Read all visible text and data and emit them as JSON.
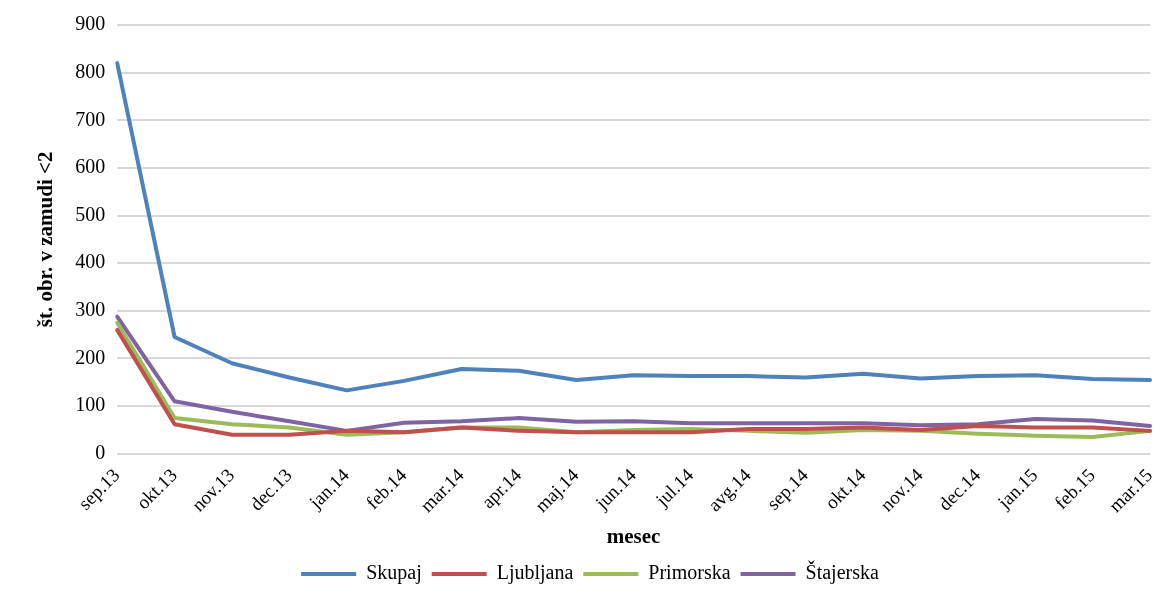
{
  "chart_data": {
    "type": "line",
    "xlabel": "mesec",
    "ylabel": "št. obr. v zamudi <2",
    "categories": [
      "sep.13",
      "okt.13",
      "nov.13",
      "dec.13",
      "jan.14",
      "feb.14",
      "mar.14",
      "apr.14",
      "maj.14",
      "jun.14",
      "jul.14",
      "avg.14",
      "sep.14",
      "okt.14",
      "nov.14",
      "dec.14",
      "jan.15",
      "feb.15",
      "mar.15"
    ],
    "series": [
      {
        "name": "Skupaj",
        "color": "#4f81bd",
        "values": [
          820,
          245,
          190,
          160,
          133,
          153,
          178,
          174,
          155,
          165,
          163,
          163,
          160,
          168,
          158,
          163,
          165,
          157,
          155
        ]
      },
      {
        "name": "Ljubljana",
        "color": "#c0504d",
        "values": [
          260,
          62,
          40,
          40,
          48,
          45,
          55,
          48,
          45,
          45,
          45,
          52,
          52,
          55,
          50,
          58,
          55,
          55,
          48
        ]
      },
      {
        "name": "Primorska",
        "color": "#9bbb59",
        "values": [
          275,
          75,
          62,
          55,
          40,
          45,
          55,
          55,
          45,
          50,
          52,
          48,
          44,
          50,
          48,
          42,
          38,
          35,
          48
        ]
      },
      {
        "name": "Štajerska",
        "color": "#8064a2",
        "values": [
          288,
          110,
          88,
          68,
          48,
          65,
          68,
          75,
          67,
          68,
          64,
          64,
          64,
          64,
          60,
          62,
          73,
          70,
          58
        ]
      }
    ],
    "ylim": [
      0,
      900
    ],
    "yticks": [
      0,
      100,
      200,
      300,
      400,
      500,
      600,
      700,
      800,
      900
    ],
    "grid": "y",
    "legend": "bottom",
    "marker": "none",
    "line_style": "solid"
  }
}
